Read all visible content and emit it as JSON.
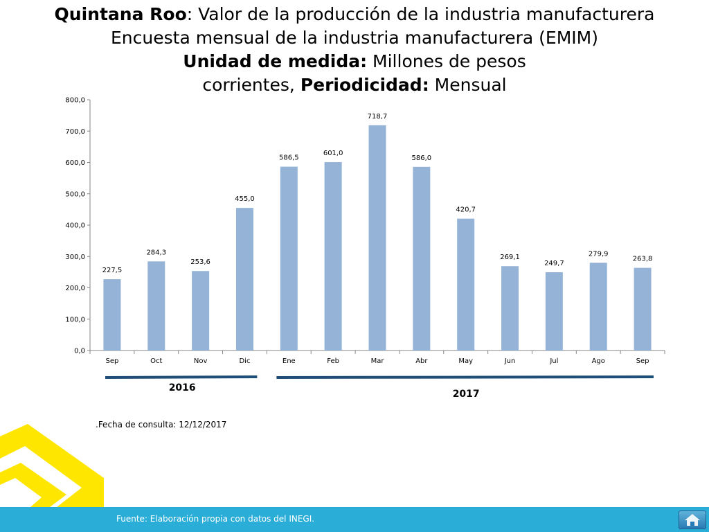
{
  "header": {
    "line1_bold": "Quintana Roo",
    "line1_rest": ": Valor de la producción de la industria manufacturera",
    "line2": "Encuesta mensual de la industria manufacturera (EMIM)",
    "line3_bold": "Unidad de medida:",
    "line3_rest": " Millones de pesos",
    "line4_pre": "corrientes, ",
    "line4_bold": "Periodicidad:",
    "line4_rest": " Mensual"
  },
  "chart_data": {
    "type": "bar",
    "categories": [
      "Sep",
      "Oct",
      "Nov",
      "Dic",
      "Ene",
      "Feb",
      "Mar",
      "Abr",
      "May",
      "Jun",
      "Jul",
      "Ago",
      "Sep"
    ],
    "values": [
      227.5,
      284.3,
      253.6,
      455.0,
      586.5,
      601.0,
      718.7,
      586.0,
      420.7,
      269.1,
      249.7,
      279.9,
      263.8
    ],
    "value_labels": [
      "227,5",
      "284,3",
      "253,6",
      "455,0",
      "586,5",
      "601,0",
      "718,7",
      "586,0",
      "420,7",
      "269,1",
      "249,7",
      "279,9",
      "263,8"
    ],
    "y_ticks": [
      0,
      100,
      200,
      300,
      400,
      500,
      600,
      700,
      800
    ],
    "y_tick_labels": [
      "0,0",
      "100,0",
      "200,0",
      "300,0",
      "400,0",
      "500,0",
      "600,0",
      "700,0",
      "800,0"
    ],
    "ylim": [
      0,
      800
    ],
    "grid": false,
    "bar_color": "#95b3d7",
    "year_groups": [
      {
        "label": "2016",
        "from_index": 0,
        "to_index": 3
      },
      {
        "label": "2017",
        "from_index": 4,
        "to_index": 12
      }
    ],
    "year_bar_color": "#1f4e79"
  },
  "notes": {
    "consult_date": ".Fecha de consulta: 12/12/2017"
  },
  "footer": {
    "source": "Fuente: Elaboración propia con datos del INEGI.",
    "home_icon": "home-icon"
  },
  "colors": {
    "footer_bg": "#2aaed8",
    "accent_yellow": "#ffe600"
  }
}
